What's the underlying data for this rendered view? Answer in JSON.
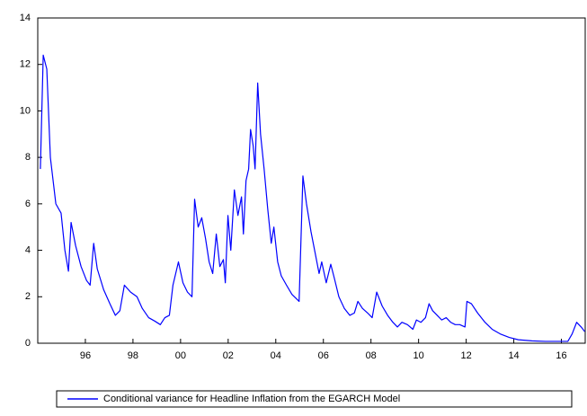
{
  "chart_data": {
    "type": "line",
    "series": [
      {
        "name": "Conditional variance for Headline Inflation from the EGARCH Model",
        "color": "#0000ff",
        "x": [
          1994.11,
          1994.23,
          1994.38,
          1994.53,
          1994.76,
          1994.98,
          1995.14,
          1995.29,
          1995.4,
          1995.59,
          1995.82,
          1996.05,
          1996.2,
          1996.35,
          1996.5,
          1996.77,
          1997.03,
          1997.26,
          1997.45,
          1997.64,
          1997.9,
          1998.17,
          1998.39,
          1998.66,
          1998.92,
          1999.15,
          1999.34,
          1999.53,
          1999.68,
          1999.91,
          2000.1,
          2000.29,
          2000.48,
          2000.59,
          2000.74,
          2000.89,
          2001.05,
          2001.2,
          2001.35,
          2001.5,
          2001.65,
          2001.8,
          2001.88,
          2001.99,
          2002.11,
          2002.26,
          2002.41,
          2002.56,
          2002.64,
          2002.75,
          2002.86,
          2002.94,
          2003.05,
          2003.13,
          2003.24,
          2003.36,
          2003.51,
          2003.66,
          2003.81,
          2003.92,
          2004.08,
          2004.23,
          2004.45,
          2004.68,
          2004.98,
          2005.14,
          2005.29,
          2005.48,
          2005.67,
          2005.82,
          2005.93,
          2006.12,
          2006.31,
          2006.46,
          2006.65,
          2006.88,
          2007.11,
          2007.3,
          2007.45,
          2007.64,
          2007.86,
          2008.05,
          2008.24,
          2008.47,
          2008.7,
          2008.92,
          2009.11,
          2009.3,
          2009.53,
          2009.76,
          2009.91,
          2010.1,
          2010.29,
          2010.44,
          2010.59,
          2010.78,
          2010.97,
          2011.16,
          2011.35,
          2011.54,
          2011.73,
          2011.95,
          2012.03,
          2012.22,
          2012.48,
          2012.79,
          2013.09,
          2013.43,
          2013.81,
          2014.19,
          2014.76,
          2015.33,
          2016.27,
          2016.45,
          2016.64,
          2016.83,
          2016.98
        ],
        "values": [
          7.5,
          12.4,
          11.8,
          8.0,
          6.0,
          5.6,
          4.0,
          3.1,
          5.2,
          4.2,
          3.3,
          2.7,
          2.5,
          4.3,
          3.2,
          2.3,
          1.7,
          1.2,
          1.4,
          2.5,
          2.2,
          2.0,
          1.5,
          1.1,
          0.95,
          0.8,
          1.1,
          1.2,
          2.5,
          3.5,
          2.6,
          2.2,
          2.0,
          6.2,
          5.0,
          5.4,
          4.5,
          3.5,
          3.0,
          4.7,
          3.3,
          3.6,
          2.6,
          5.5,
          4.0,
          6.6,
          5.5,
          6.3,
          4.7,
          7.0,
          7.5,
          9.2,
          8.5,
          7.5,
          11.2,
          9.0,
          7.5,
          5.8,
          4.3,
          5.0,
          3.5,
          2.9,
          2.5,
          2.1,
          1.8,
          7.2,
          6.0,
          4.8,
          3.8,
          3.0,
          3.5,
          2.6,
          3.4,
          2.8,
          2.0,
          1.5,
          1.2,
          1.3,
          1.8,
          1.5,
          1.3,
          1.1,
          2.2,
          1.6,
          1.2,
          0.9,
          0.7,
          0.9,
          0.8,
          0.6,
          1.0,
          0.9,
          1.1,
          1.7,
          1.4,
          1.2,
          1.0,
          1.1,
          0.9,
          0.8,
          0.8,
          0.7,
          1.8,
          1.7,
          1.3,
          0.9,
          0.6,
          0.4,
          0.25,
          0.15,
          0.1,
          0.08,
          0.08,
          0.4,
          0.9,
          0.7,
          0.5
        ]
      }
    ],
    "xlim": [
      1994,
      2017
    ],
    "xticks": [
      {
        "value": 1996,
        "label": "96"
      },
      {
        "value": 1998,
        "label": "98"
      },
      {
        "value": 2000,
        "label": "00"
      },
      {
        "value": 2002,
        "label": "02"
      },
      {
        "value": 2004,
        "label": "04"
      },
      {
        "value": 2006,
        "label": "06"
      },
      {
        "value": 2008,
        "label": "08"
      },
      {
        "value": 2010,
        "label": "10"
      },
      {
        "value": 2012,
        "label": "12"
      },
      {
        "value": 2014,
        "label": "14"
      },
      {
        "value": 2016,
        "label": "16"
      }
    ],
    "ylim": [
      0,
      14
    ],
    "yticks": [
      0,
      2,
      4,
      6,
      8,
      10,
      12,
      14
    ],
    "grid": false,
    "legend": "bottom"
  }
}
